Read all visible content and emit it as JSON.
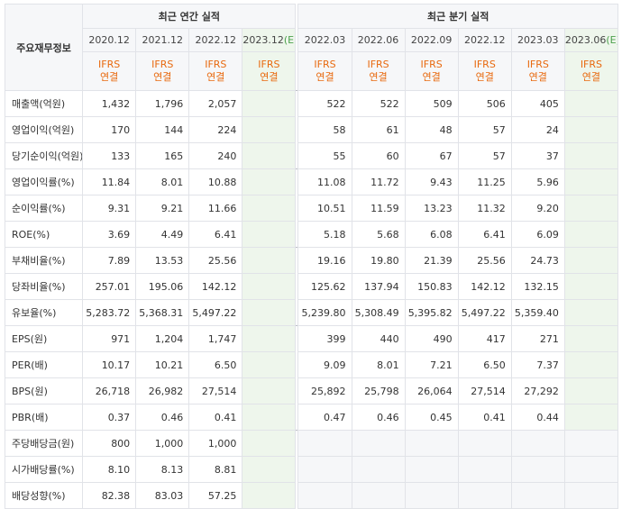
{
  "header": {
    "corner_label": "주요재무정보",
    "annual_title": "최근 연간 실적",
    "quarter_title": "최근 분기 실적",
    "annual_periods": [
      "2020.12",
      "2021.12",
      "2022.12",
      "2023.12"
    ],
    "annual_estimate_mark": "(E)",
    "quarter_periods": [
      "2022.03",
      "2022.06",
      "2022.09",
      "2022.12",
      "2023.03",
      "2023.06"
    ],
    "quarter_estimate_mark": "(E)",
    "accounting_standard": "IFRS",
    "consolidation": "연결"
  },
  "rows": [
    {
      "label": "매출액(억원)",
      "annual": [
        "1,432",
        "1,796",
        "2,057",
        ""
      ],
      "quarter": [
        "522",
        "522",
        "509",
        "506",
        "405",
        ""
      ]
    },
    {
      "label": "영업이익(억원)",
      "annual": [
        "170",
        "144",
        "224",
        ""
      ],
      "quarter": [
        "58",
        "61",
        "48",
        "57",
        "24",
        ""
      ]
    },
    {
      "label": "당기순이익(억원)",
      "annual": [
        "133",
        "165",
        "240",
        ""
      ],
      "quarter": [
        "55",
        "60",
        "67",
        "57",
        "37",
        ""
      ]
    },
    {
      "label": "영업이익률(%)",
      "annual": [
        "11.84",
        "8.01",
        "10.88",
        ""
      ],
      "quarter": [
        "11.08",
        "11.72",
        "9.43",
        "11.25",
        "5.96",
        ""
      ]
    },
    {
      "label": "순이익률(%)",
      "annual": [
        "9.31",
        "9.21",
        "11.66",
        ""
      ],
      "quarter": [
        "10.51",
        "11.59",
        "13.23",
        "11.32",
        "9.20",
        ""
      ]
    },
    {
      "label": "ROE(%)",
      "annual": [
        "3.69",
        "4.49",
        "6.41",
        ""
      ],
      "quarter": [
        "5.18",
        "5.68",
        "6.08",
        "6.41",
        "6.09",
        ""
      ]
    },
    {
      "label": "부채비율(%)",
      "annual": [
        "7.89",
        "13.53",
        "25.56",
        ""
      ],
      "quarter": [
        "19.16",
        "19.80",
        "21.39",
        "25.56",
        "24.73",
        ""
      ]
    },
    {
      "label": "당좌비율(%)",
      "annual": [
        "257.01",
        "195.06",
        "142.12",
        ""
      ],
      "quarter": [
        "125.62",
        "137.94",
        "150.83",
        "142.12",
        "132.15",
        ""
      ]
    },
    {
      "label": "유보율(%)",
      "annual": [
        "5,283.72",
        "5,368.31",
        "5,497.22",
        ""
      ],
      "quarter": [
        "5,239.80",
        "5,308.49",
        "5,395.82",
        "5,497.22",
        "5,359.40",
        ""
      ]
    },
    {
      "label": "EPS(원)",
      "annual": [
        "971",
        "1,204",
        "1,747",
        ""
      ],
      "quarter": [
        "399",
        "440",
        "490",
        "417",
        "271",
        ""
      ]
    },
    {
      "label": "PER(배)",
      "annual": [
        "10.17",
        "10.21",
        "6.50",
        ""
      ],
      "quarter": [
        "9.09",
        "8.01",
        "7.21",
        "6.50",
        "7.37",
        ""
      ]
    },
    {
      "label": "BPS(원)",
      "annual": [
        "26,718",
        "26,982",
        "27,514",
        ""
      ],
      "quarter": [
        "25,892",
        "25,798",
        "26,064",
        "27,514",
        "27,292",
        ""
      ]
    },
    {
      "label": "PBR(배)",
      "annual": [
        "0.37",
        "0.46",
        "0.41",
        ""
      ],
      "quarter": [
        "0.47",
        "0.46",
        "0.45",
        "0.41",
        "0.44",
        ""
      ]
    },
    {
      "label": "주당배당금(원)",
      "annual": [
        "800",
        "1,000",
        "1,000",
        ""
      ],
      "quarter": [
        "",
        "",
        "",
        "",
        "",
        ""
      ]
    },
    {
      "label": "시가배당률(%)",
      "annual": [
        "8.10",
        "8.13",
        "8.81",
        ""
      ],
      "quarter": [
        "",
        "",
        "",
        "",
        "",
        ""
      ]
    },
    {
      "label": "배당성향(%)",
      "annual": [
        "82.38",
        "83.03",
        "57.25",
        ""
      ],
      "quarter": [
        "",
        "",
        "",
        "",
        "",
        ""
      ]
    }
  ]
}
